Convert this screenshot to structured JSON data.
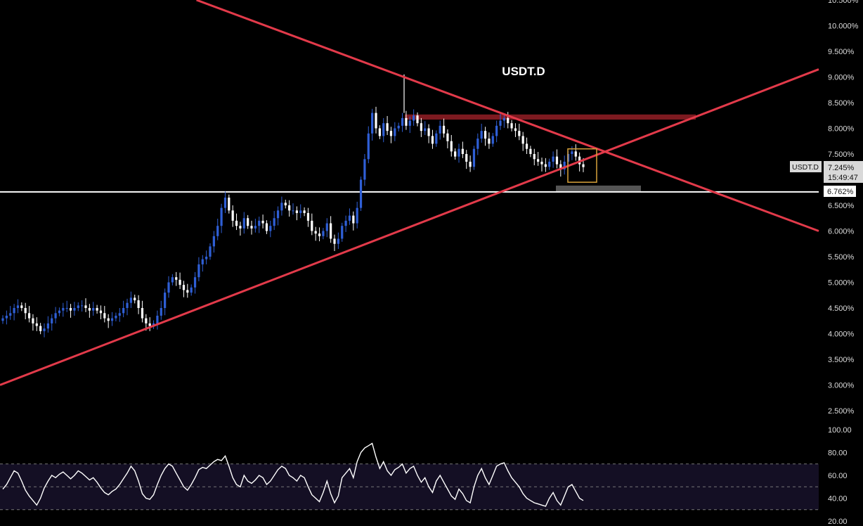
{
  "chart_title": "USDT.D",
  "colors": {
    "background": "#000000",
    "candle_up": "#2f5fd6",
    "candle_down": "#ffffff",
    "trendline": "#e23a4a",
    "resistance_zone": "#8b1d24",
    "support_line": "#ffffff",
    "support_zone": "#555555",
    "highlight_box": "#d8a23a",
    "rsi_line": "#ffffff",
    "rsi_band": "#140f24",
    "axis_text": "#dddddd"
  },
  "price_axis": {
    "ticks": [
      "10.500%",
      "10.000%",
      "9.500%",
      "9.000%",
      "8.500%",
      "8.000%",
      "7.500%",
      "6.500%",
      "6.000%",
      "5.500%",
      "5.000%",
      "4.500%",
      "4.000%",
      "3.500%",
      "3.000%",
      "2.500%"
    ],
    "tick_values": [
      10.5,
      10.0,
      9.5,
      9.0,
      8.5,
      8.0,
      7.5,
      6.5,
      6.0,
      5.5,
      5.0,
      4.5,
      4.0,
      3.5,
      3.0,
      2.5
    ],
    "symbol_label": "USDT.D",
    "last_price": "7.245%",
    "countdown": "15:49:47",
    "support_label": "6.762%"
  },
  "rsi_axis": {
    "ticks": [
      "100.00",
      "80.00",
      "60.00",
      "40.00",
      "20.00"
    ],
    "tick_values": [
      100,
      80,
      60,
      40,
      20
    ],
    "upper_band": 70,
    "middle": 50,
    "lower_band": 30
  },
  "chart_data": {
    "type": "candlestick",
    "title": "USDT.D",
    "y_unit": "%",
    "ylim": [
      2.3,
      10.5
    ],
    "close_series": [
      4.3,
      4.35,
      4.4,
      4.5,
      4.55,
      4.5,
      4.4,
      4.3,
      4.2,
      4.15,
      4.05,
      4.1,
      4.2,
      4.3,
      4.4,
      4.45,
      4.5,
      4.5,
      4.45,
      4.5,
      4.55,
      4.55,
      4.5,
      4.45,
      4.5,
      4.45,
      4.4,
      4.3,
      4.25,
      4.3,
      4.35,
      4.4,
      4.5,
      4.6,
      4.7,
      4.65,
      4.5,
      4.3,
      4.2,
      4.15,
      4.2,
      4.35,
      4.5,
      4.8,
      5.0,
      5.1,
      5.05,
      4.95,
      4.85,
      4.8,
      4.9,
      5.1,
      5.35,
      5.45,
      5.5,
      5.7,
      5.9,
      6.1,
      6.45,
      6.65,
      6.4,
      6.2,
      6.1,
      6.05,
      6.25,
      6.1,
      6.05,
      6.1,
      6.2,
      6.15,
      6.0,
      6.1,
      6.25,
      6.4,
      6.55,
      6.5,
      6.4,
      6.4,
      6.35,
      6.4,
      6.35,
      6.2,
      6.0,
      5.95,
      5.9,
      6.0,
      6.15,
      5.85,
      5.75,
      5.85,
      6.1,
      6.2,
      6.3,
      6.15,
      6.45,
      7.0,
      7.4,
      7.9,
      8.3,
      8.0,
      7.85,
      8.1,
      7.95,
      7.85,
      8.0,
      8.05,
      8.2,
      8.05,
      8.15,
      8.25,
      8.1,
      7.95,
      8.0,
      7.85,
      7.7,
      7.9,
      8.05,
      7.9,
      7.75,
      7.55,
      7.45,
      7.6,
      7.5,
      7.35,
      7.25,
      7.6,
      7.8,
      7.95,
      7.8,
      7.7,
      7.85,
      8.05,
      8.15,
      8.2,
      8.1,
      8.0,
      7.95,
      7.85,
      7.7,
      7.6,
      7.5,
      7.4,
      7.35,
      7.3,
      7.25,
      7.35,
      7.45,
      7.3,
      7.2,
      7.35,
      7.5,
      7.55,
      7.45,
      7.3,
      7.245
    ],
    "last_close": 7.245,
    "support_level": 6.762,
    "resistance_zone": [
      8.17,
      8.27
    ],
    "peak": 9.05,
    "descending_trendline": [
      {
        "x": 0.24,
        "y": 10.5
      },
      {
        "x": 1.0,
        "y": 6.0
      }
    ],
    "ascending_trendline": [
      {
        "x": 0.0,
        "y": 3.0
      },
      {
        "x": 1.0,
        "y": 9.15
      }
    ],
    "grid": false,
    "legend": "none"
  },
  "rsi_data": {
    "name": "RSI",
    "ylim": [
      20,
      100
    ],
    "values": [
      48,
      52,
      58,
      64,
      62,
      55,
      47,
      42,
      38,
      34,
      40,
      49,
      55,
      60,
      58,
      61,
      63,
      60,
      57,
      60,
      64,
      62,
      59,
      56,
      58,
      54,
      49,
      45,
      43,
      46,
      48,
      52,
      57,
      62,
      68,
      64,
      55,
      44,
      40,
      39,
      43,
      52,
      60,
      66,
      70,
      68,
      62,
      56,
      50,
      47,
      52,
      58,
      65,
      67,
      66,
      69,
      72,
      74,
      73,
      77,
      68,
      58,
      52,
      50,
      60,
      55,
      53,
      56,
      60,
      58,
      52,
      55,
      60,
      65,
      68,
      66,
      60,
      58,
      55,
      60,
      58,
      50,
      43,
      40,
      37,
      45,
      55,
      44,
      36,
      42,
      58,
      62,
      66,
      58,
      72,
      80,
      84,
      86,
      88,
      76,
      66,
      72,
      64,
      60,
      65,
      67,
      70,
      62,
      66,
      68,
      60,
      54,
      58,
      50,
      45,
      55,
      60,
      54,
      48,
      42,
      39,
      48,
      44,
      38,
      36,
      50,
      60,
      66,
      58,
      52,
      60,
      68,
      70,
      71,
      64,
      58,
      54,
      50,
      44,
      40,
      38,
      36,
      35,
      34,
      33,
      40,
      45,
      38,
      34,
      42,
      50,
      52,
      46,
      40,
      38
    ]
  }
}
